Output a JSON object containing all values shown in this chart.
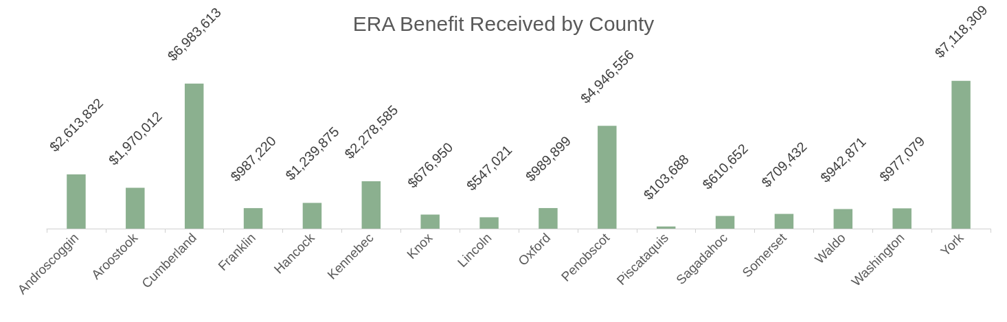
{
  "chart_data": {
    "type": "bar",
    "title": "ERA Benefit Received by County",
    "categories": [
      "Androscoggin",
      "Aroostook",
      "Cumberland",
      "Franklin",
      "Hancock",
      "Kennebec",
      "Knox",
      "Lincoln",
      "Oxford",
      "Penobscot",
      "Piscataquis",
      "Sagadahoc",
      "Somerset",
      "Waldo",
      "Washington",
      "York"
    ],
    "values": [
      2613832,
      1970012,
      6983613,
      987220,
      1239875,
      2278585,
      676950,
      547021,
      989899,
      4946556,
      103688,
      610652,
      709432,
      942871,
      977079,
      7118309
    ],
    "value_labels": [
      "$2,613,832",
      "$1,970,012",
      "$6,983,613",
      "$987,220",
      "$1,239,875",
      "$2,278,585",
      "$676,950",
      "$547,021",
      "$989,899",
      "$4,946,556",
      "$103,688",
      "$610,652",
      "$709,432",
      "$942,871",
      "$977,079",
      "$7,118,309"
    ],
    "color": "#8bb08f"
  }
}
